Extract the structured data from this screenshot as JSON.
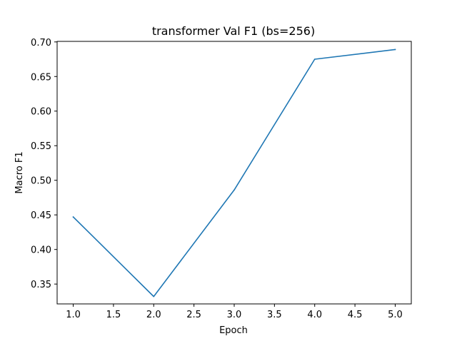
{
  "chart_data": {
    "type": "line",
    "title": "transformer Val F1 (bs=256)",
    "xlabel": "Epoch",
    "ylabel": "Macro F1",
    "x": [
      1,
      2,
      3,
      4,
      5
    ],
    "series": [
      {
        "values": [
          0.447,
          0.332,
          0.486,
          0.675,
          0.689
        ],
        "color": "#1f77b4"
      }
    ],
    "xlim": [
      0.8,
      5.2
    ],
    "ylim": [
      0.3213,
      0.7008
    ],
    "xticks": [
      1.0,
      1.5,
      2.0,
      2.5,
      3.0,
      3.5,
      4.0,
      4.5,
      5.0
    ],
    "xtick_labels": [
      "1.0",
      "1.5",
      "2.0",
      "2.5",
      "3.0",
      "3.5",
      "4.0",
      "4.5",
      "5.0"
    ],
    "yticks": [
      0.35,
      0.4,
      0.45,
      0.5,
      0.55,
      0.6,
      0.65,
      0.7
    ],
    "ytick_labels": [
      "0.35",
      "0.40",
      "0.45",
      "0.50",
      "0.55",
      "0.60",
      "0.65",
      "0.70"
    ],
    "grid": false,
    "legend": false
  }
}
